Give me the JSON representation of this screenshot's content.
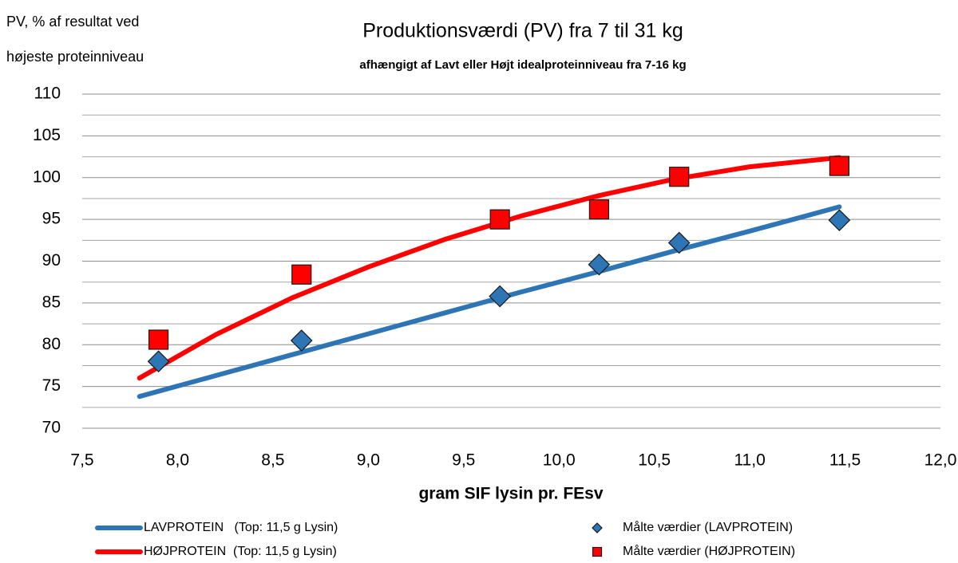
{
  "chart_data": {
    "type": "line",
    "title": "Produktionsværdi (PV) fra 7 til 31 kg",
    "subtitle": "afhængigt af Lavt eller Højt idealproteinniveau fra 7-16 kg",
    "y_label": [
      "PV, % af resultat ved",
      "højeste proteinniveau"
    ],
    "x_label": "gram SIF lysin pr. FEsv",
    "xlim": [
      7.5,
      12.0
    ],
    "xticks": [
      {
        "value": 7.5,
        "label": "7,5"
      },
      {
        "value": 8.0,
        "label": "8,0"
      },
      {
        "value": 8.5,
        "label": "8,5"
      },
      {
        "value": 9.0,
        "label": "9,0"
      },
      {
        "value": 9.5,
        "label": "9,5"
      },
      {
        "value": 10.0,
        "label": "10,0"
      },
      {
        "value": 10.5,
        "label": "10,5"
      },
      {
        "value": 11.0,
        "label": "11,0"
      },
      {
        "value": 11.5,
        "label": "11,5"
      },
      {
        "value": 12.0,
        "label": "12,0"
      }
    ],
    "ylim": [
      70,
      110
    ],
    "yticks": [
      70,
      75,
      80,
      85,
      90,
      95,
      100,
      105,
      110
    ],
    "y_minor_grid": [
      72.5,
      77.5,
      82.5,
      87.5,
      92.5,
      97.5,
      102.5,
      107.5
    ],
    "grid": true,
    "series": [
      {
        "name": "LAVPROTEIN   (Top: 11,5 g Lysin)",
        "type": "line",
        "color": "#2e75b6",
        "x": [
          7.8,
          8.2,
          8.6,
          9.0,
          9.4,
          9.8,
          10.2,
          10.6,
          11.0,
          11.47
        ],
        "values": [
          73.8,
          76.3,
          78.8,
          81.3,
          83.8,
          86.3,
          88.7,
          91.2,
          93.6,
          96.5
        ]
      },
      {
        "name": "HØJPROTEIN  (Top: 11,5 g Lysin)",
        "type": "line",
        "color": "#ff0000",
        "x": [
          7.8,
          8.2,
          8.6,
          9.0,
          9.4,
          9.8,
          10.2,
          10.6,
          11.0,
          11.47
        ],
        "values": [
          76.0,
          81.2,
          85.6,
          89.3,
          92.6,
          95.4,
          97.8,
          99.8,
          101.3,
          102.4
        ]
      },
      {
        "name": "Målte værdier (LAVPROTEIN)",
        "type": "scatter",
        "marker": "diamond",
        "color": "#2e75b6",
        "x": [
          7.9,
          8.65,
          9.69,
          10.21,
          10.63,
          11.47
        ],
        "values": [
          78.0,
          80.5,
          85.8,
          89.6,
          92.2,
          94.9
        ]
      },
      {
        "name": "Målte værdier (HØJPROTEIN)",
        "type": "scatter",
        "marker": "square",
        "color": "#ff0000",
        "x": [
          7.9,
          8.65,
          9.69,
          10.21,
          10.63,
          11.47
        ],
        "values": [
          80.6,
          88.4,
          95.0,
          96.2,
          100.1,
          101.4
        ]
      }
    ]
  }
}
